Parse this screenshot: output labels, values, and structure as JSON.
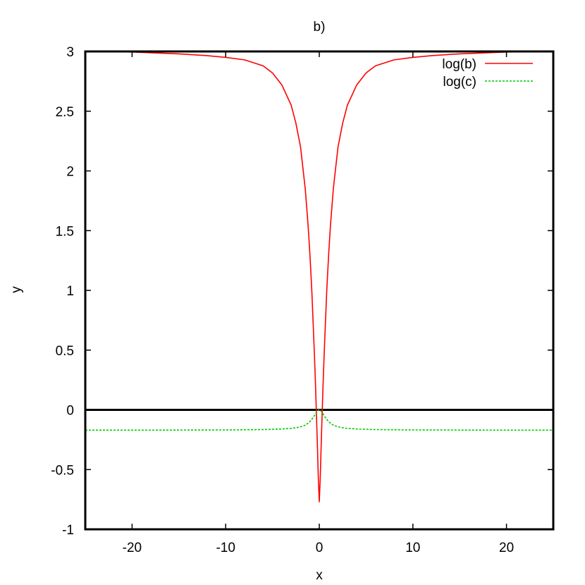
{
  "chart_data": {
    "type": "line",
    "title": "b)",
    "xlabel": "x",
    "ylabel": "y",
    "xlim": [
      -25,
      25
    ],
    "ylim": [
      -1,
      3
    ],
    "x_ticks": [
      {
        "value": -20,
        "label": "-20"
      },
      {
        "value": -10,
        "label": "-10"
      },
      {
        "value": 0,
        "label": "0"
      },
      {
        "value": 10,
        "label": "10"
      },
      {
        "value": 20,
        "label": "20"
      }
    ],
    "y_ticks": [
      {
        "value": -1,
        "label": "-1"
      },
      {
        "value": -0.5,
        "label": "-0.5"
      },
      {
        "value": 0,
        "label": "0"
      },
      {
        "value": 0.5,
        "label": "0.5"
      },
      {
        "value": 1,
        "label": "1"
      },
      {
        "value": 1.5,
        "label": "1.5"
      },
      {
        "value": 2,
        "label": "2"
      },
      {
        "value": 2.5,
        "label": "2.5"
      },
      {
        "value": 3,
        "label": "3"
      }
    ],
    "zero_line": true,
    "grid": false,
    "legend_position": "top-right",
    "series": [
      {
        "name": "log(b)",
        "color": "#ff0000",
        "dash": "solid",
        "x": [
          -25,
          -20,
          -15,
          -12,
          -10,
          -8,
          -6,
          -5,
          -4,
          -3,
          -2.5,
          -2,
          -1.5,
          -1.2,
          -1,
          -0.8,
          -0.6,
          -0.5,
          -0.4,
          -0.3,
          -0.2,
          -0.1,
          0,
          0.1,
          0.2,
          0.3,
          0.4,
          0.5,
          0.6,
          0.8,
          1,
          1.2,
          1.5,
          2,
          2.5,
          3,
          4,
          5,
          6,
          8,
          10,
          12,
          15,
          20,
          25
        ],
        "y": [
          3.0,
          2.995,
          2.98,
          2.965,
          2.95,
          2.93,
          2.88,
          2.82,
          2.72,
          2.55,
          2.4,
          2.2,
          1.85,
          1.55,
          1.3,
          1.0,
          0.62,
          0.42,
          0.2,
          -0.05,
          -0.3,
          -0.58,
          -0.77,
          -0.58,
          -0.3,
          -0.05,
          0.2,
          0.42,
          0.62,
          1.0,
          1.3,
          1.55,
          1.85,
          2.2,
          2.4,
          2.55,
          2.72,
          2.82,
          2.88,
          2.93,
          2.95,
          2.965,
          2.98,
          2.995,
          3.0
        ]
      },
      {
        "name": "log(c)",
        "color": "#00cc00",
        "dash": "dashed",
        "x": [
          -25,
          -20,
          -15,
          -10,
          -8,
          -6,
          -5,
          -4,
          -3,
          -2.5,
          -2,
          -1.5,
          -1.2,
          -1,
          -0.8,
          -0.6,
          -0.5,
          -0.4,
          -0.3,
          -0.2,
          -0.1,
          0,
          0.1,
          0.2,
          0.3,
          0.4,
          0.5,
          0.6,
          0.8,
          1,
          1.2,
          1.5,
          2,
          2.5,
          3,
          4,
          5,
          6,
          8,
          10,
          15,
          20,
          25
        ],
        "y": [
          -0.17,
          -0.17,
          -0.169,
          -0.168,
          -0.167,
          -0.165,
          -0.163,
          -0.16,
          -0.155,
          -0.15,
          -0.142,
          -0.128,
          -0.112,
          -0.098,
          -0.08,
          -0.058,
          -0.045,
          -0.032,
          -0.02,
          -0.01,
          -0.003,
          0.0,
          -0.003,
          -0.01,
          -0.02,
          -0.032,
          -0.045,
          -0.058,
          -0.08,
          -0.098,
          -0.112,
          -0.128,
          -0.142,
          -0.15,
          -0.155,
          -0.16,
          -0.163,
          -0.165,
          -0.167,
          -0.168,
          -0.169,
          -0.17,
          -0.17
        ]
      }
    ]
  }
}
